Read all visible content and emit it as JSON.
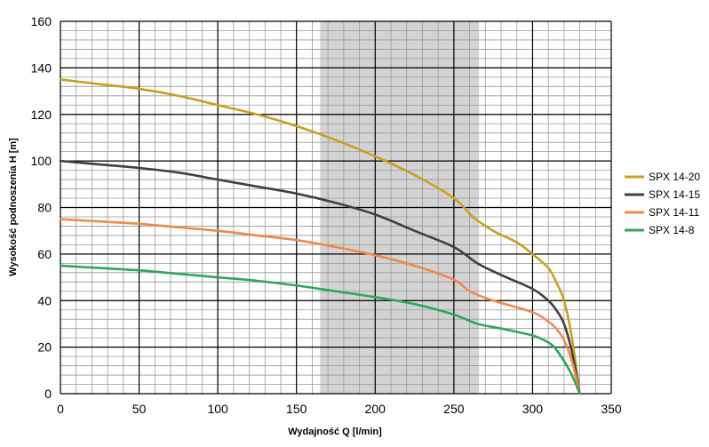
{
  "chart_data": {
    "type": "line",
    "title": "",
    "xlabel": "Wydajność Q [l/min]",
    "ylabel": "Wysokość podnoszenia H [m]",
    "xlim": [
      0,
      350
    ],
    "ylim": [
      0,
      160
    ],
    "x_ticks": [
      0,
      50,
      100,
      150,
      200,
      250,
      300,
      350
    ],
    "y_ticks": [
      0,
      20,
      40,
      60,
      80,
      100,
      120,
      140,
      160
    ],
    "x_minor_step": 10,
    "y_minor_step": 4,
    "grid": true,
    "legend_position": "right",
    "highlight_band": {
      "x_start": 165,
      "x_end": 266,
      "color": "#d3d3d3"
    },
    "series": [
      {
        "name": "SPX 14-20",
        "color": "#c9a11c",
        "points": [
          [
            0,
            135
          ],
          [
            25,
            133
          ],
          [
            50,
            131
          ],
          [
            75,
            128
          ],
          [
            100,
            124
          ],
          [
            125,
            120
          ],
          [
            150,
            115
          ],
          [
            175,
            109
          ],
          [
            200,
            102
          ],
          [
            225,
            94
          ],
          [
            250,
            84
          ],
          [
            262,
            76
          ],
          [
            275,
            70
          ],
          [
            290,
            65
          ],
          [
            300,
            60
          ],
          [
            310,
            54
          ],
          [
            315,
            48
          ],
          [
            320,
            40
          ],
          [
            325,
            24
          ],
          [
            330,
            0
          ]
        ]
      },
      {
        "name": "SPX 14-15",
        "color": "#404040",
        "points": [
          [
            0,
            100
          ],
          [
            25,
            98.5
          ],
          [
            50,
            97
          ],
          [
            75,
            95
          ],
          [
            100,
            92
          ],
          [
            125,
            89
          ],
          [
            150,
            86
          ],
          [
            175,
            82
          ],
          [
            200,
            77
          ],
          [
            225,
            70
          ],
          [
            250,
            63
          ],
          [
            265,
            56
          ],
          [
            280,
            51
          ],
          [
            300,
            45
          ],
          [
            310,
            40
          ],
          [
            315,
            36
          ],
          [
            320,
            30
          ],
          [
            325,
            18
          ],
          [
            330,
            0
          ]
        ]
      },
      {
        "name": "SPX 14-11",
        "color": "#f08a4b",
        "points": [
          [
            0,
            75
          ],
          [
            25,
            74
          ],
          [
            50,
            73
          ],
          [
            75,
            71.5
          ],
          [
            100,
            70
          ],
          [
            125,
            68
          ],
          [
            150,
            66
          ],
          [
            175,
            63
          ],
          [
            200,
            59.5
          ],
          [
            225,
            55
          ],
          [
            250,
            49
          ],
          [
            260,
            44
          ],
          [
            275,
            40
          ],
          [
            300,
            35
          ],
          [
            310,
            31
          ],
          [
            315,
            28
          ],
          [
            320,
            23
          ],
          [
            325,
            14
          ],
          [
            330,
            0
          ]
        ]
      },
      {
        "name": "SPX 14-8",
        "color": "#2ba85a",
        "points": [
          [
            0,
            55
          ],
          [
            25,
            54
          ],
          [
            50,
            53
          ],
          [
            75,
            51.5
          ],
          [
            100,
            50
          ],
          [
            125,
            48.5
          ],
          [
            150,
            46.5
          ],
          [
            175,
            44
          ],
          [
            200,
            41.5
          ],
          [
            225,
            38.5
          ],
          [
            250,
            34
          ],
          [
            265,
            30
          ],
          [
            280,
            28
          ],
          [
            300,
            25
          ],
          [
            310,
            22
          ],
          [
            315,
            19
          ],
          [
            320,
            14
          ],
          [
            325,
            8
          ],
          [
            330,
            0
          ]
        ]
      }
    ]
  }
}
